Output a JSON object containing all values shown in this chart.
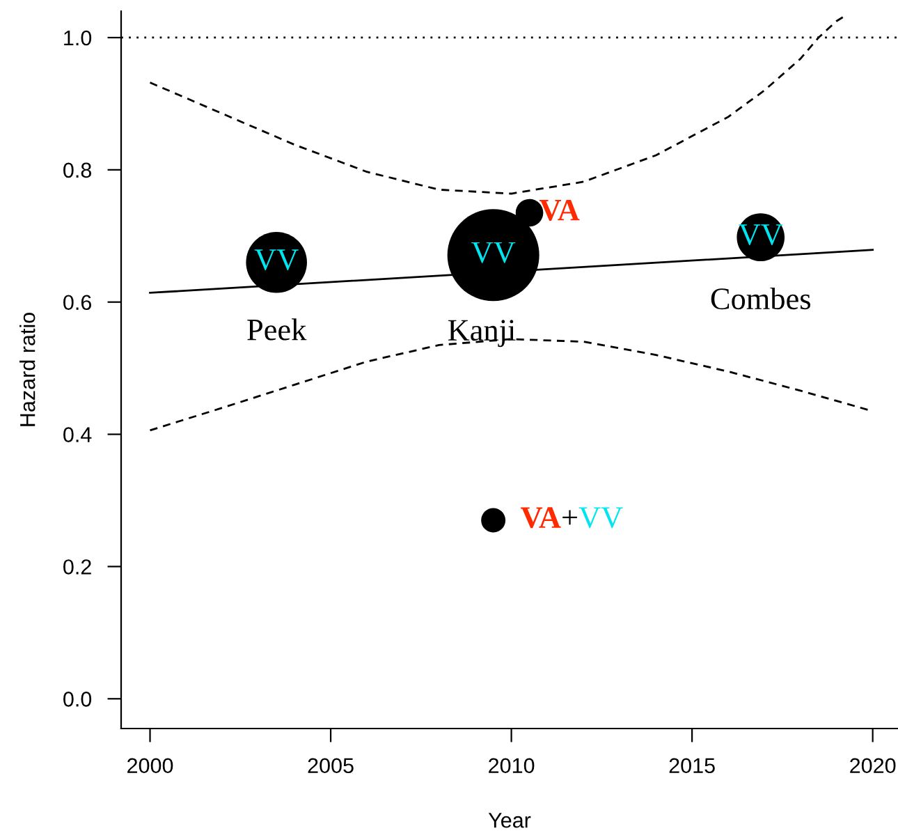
{
  "chart_data": {
    "type": "bubble",
    "xlabel": "Year",
    "ylabel": "Hazard ratio",
    "xlim": [
      1999.2,
      2020.7
    ],
    "ylim": [
      -0.045,
      1.04
    ],
    "xticks": [
      2000,
      2005,
      2010,
      2015,
      2020
    ],
    "yticks": [
      {
        "value": 0,
        "label": "0.0"
      },
      0.2,
      0.4,
      0.6,
      0.8,
      {
        "value": 1,
        "label": "1.0"
      }
    ],
    "grid": false,
    "legend": false,
    "series": [
      {
        "color": "#000000",
        "x": [
          2003.5,
          2009.5,
          2010.5,
          2016.9,
          2009.5
        ],
        "values": [
          0.66,
          0.671,
          0.735,
          0.698,
          0.27
        ],
        "sizes": [
          0.44,
          1,
          0.09,
          0.27,
          0.07
        ]
      },
      {
        "type": "line",
        "color": "#000000",
        "line_style": "solid",
        "marker": "none",
        "x": [
          2000,
          2020
        ],
        "values": [
          0.614,
          0.679
        ]
      },
      {
        "type": "line",
        "color": "#000000",
        "line_style": "dashed",
        "marker": "none",
        "x": [
          2000,
          2002,
          2004,
          2006,
          2008,
          2010,
          2012,
          2014,
          2016,
          2017,
          2018,
          2018.5,
          2019,
          2019.3
        ],
        "values": [
          0.932,
          0.885,
          0.838,
          0.797,
          0.77,
          0.764,
          0.782,
          0.822,
          0.88,
          0.92,
          0.968,
          1.0,
          1.025,
          1.035
        ]
      },
      {
        "type": "line",
        "color": "#000000",
        "line_style": "dashed",
        "marker": "none",
        "x": [
          2000,
          2002,
          2004,
          2006,
          2008,
          2010,
          2012,
          2014,
          2016,
          2018,
          2020
        ],
        "values": [
          0.406,
          0.44,
          0.475,
          0.51,
          0.535,
          0.544,
          0.54,
          0.52,
          0.495,
          0.466,
          0.435
        ]
      }
    ],
    "ref_lines": [
      {
        "axis": "y",
        "value": 1.0,
        "line_style": "dotted",
        "color": "#000000"
      }
    ],
    "annotations": [
      {
        "text": "VV",
        "x": 2003.5,
        "y": 0.66
      },
      {
        "text": "VV",
        "x": 2009.5,
        "y": 0.671
      },
      {
        "text": "VV",
        "x": 2016.9,
        "y": 0.698
      },
      {
        "text": "Peek",
        "x": 2003.5,
        "y": 0.66
      },
      {
        "text": "Kanji",
        "x": 2009.5,
        "y": 0.671
      },
      {
        "text": "Combes",
        "x": 2016.9,
        "y": 0.698
      },
      {
        "text": "VA",
        "x": 2010.5,
        "y": 0.735
      },
      {
        "text": "VA",
        "x": 2009.5,
        "y": 0.27
      },
      {
        "text": "+",
        "x": 2009.5,
        "y": 0.27
      },
      {
        "text": "VV",
        "x": 2009.5,
        "y": 0.27
      }
    ]
  }
}
